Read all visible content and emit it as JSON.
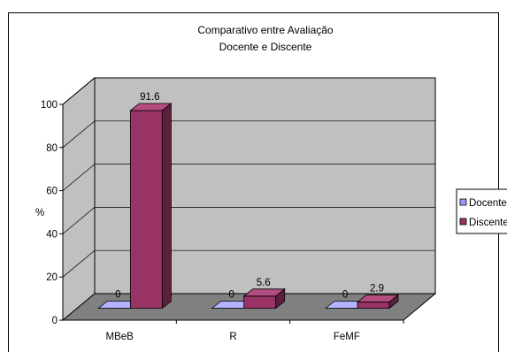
{
  "chart_data": {
    "type": "bar",
    "title_lines": [
      "Comparativo entre Avaliação",
      "Docente e Discente"
    ],
    "ylabel": "%",
    "xlabel": "",
    "ylim": [
      0,
      100
    ],
    "yticks": [
      "0",
      "20",
      "40",
      "60",
      "80",
      "100"
    ],
    "categories": [
      "MBeB",
      "R",
      "FeMF"
    ],
    "series": [
      {
        "name": "Docente",
        "values": [
          0,
          0,
          0
        ],
        "labels": [
          "0",
          "0",
          "0"
        ],
        "color": "#9999ff",
        "side": "#6b6bb3",
        "top": "#b3b3ff"
      },
      {
        "name": "Discente",
        "values": [
          91.6,
          5.6,
          2.9
        ],
        "labels": [
          "91.6",
          "5.6",
          "2.9"
        ],
        "color": "#993366",
        "side": "#5c1f3d",
        "top": "#b34d80"
      }
    ],
    "legend_position": "right",
    "wall_color": "#c0c0c0",
    "floor_color": "#808080"
  }
}
